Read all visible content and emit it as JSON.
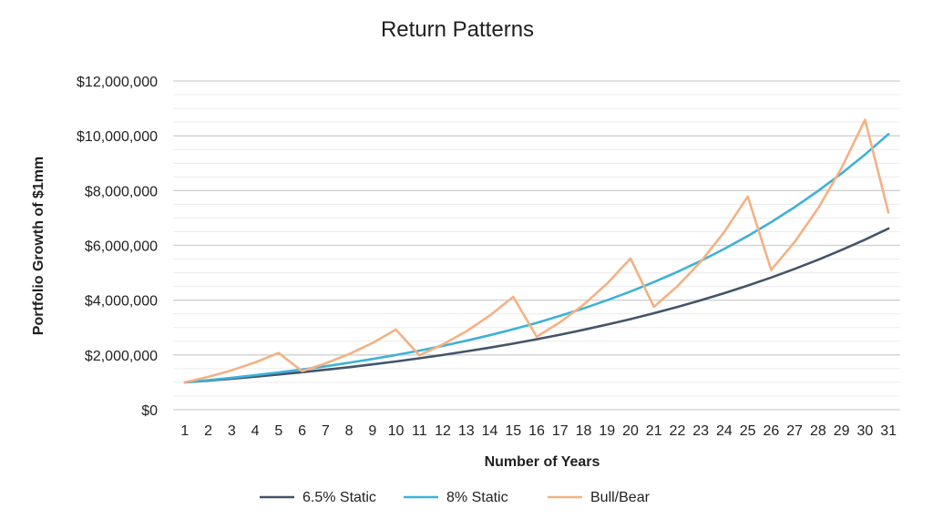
{
  "chart_data": {
    "type": "line",
    "title": "Return Patterns",
    "xlabel": "Number of Years",
    "ylabel": "Portfolio Growth of  $1mm",
    "ylim": [
      0,
      12000000
    ],
    "y_ticks": [
      0,
      2000000,
      4000000,
      6000000,
      8000000,
      10000000,
      12000000
    ],
    "y_tick_labels": [
      "$0",
      "$2,000,000",
      "$4,000,000",
      "$6,000,000",
      "$8,000,000",
      "$10,000,000",
      "$12,000,000"
    ],
    "grid": true,
    "legend_position": "bottom",
    "x": [
      1,
      2,
      3,
      4,
      5,
      6,
      7,
      8,
      9,
      10,
      11,
      12,
      13,
      14,
      15,
      16,
      17,
      18,
      19,
      20,
      21,
      22,
      23,
      24,
      25,
      26,
      27,
      28,
      29,
      30,
      31
    ],
    "series": [
      {
        "name": "6.5% Static",
        "color": "#44546a",
        "values": [
          1000000,
          1065000,
          1134225,
          1207950,
          1286466,
          1370086,
          1459142,
          1553987,
          1654996,
          1762570,
          1877137,
          1999151,
          2129096,
          2267487,
          2414874,
          2571840,
          2739009,
          2917045,
          3106653,
          3308586,
          3523645,
          3752682,
          3996606,
          4256386,
          4533051,
          4827699,
          5141500,
          5475697,
          5831618,
          6210672,
          6614365
        ]
      },
      {
        "name": "8% Static",
        "color": "#3eb1d8",
        "values": [
          1000000,
          1080000,
          1166400,
          1259712,
          1360489,
          1469328,
          1586874,
          1713824,
          1850930,
          1999005,
          2158925,
          2331639,
          2518170,
          2719624,
          2937194,
          3172169,
          3425943,
          3700018,
          3996019,
          4315701,
          4660957,
          5033834,
          5436540,
          5871464,
          6341181,
          6848475,
          7396353,
          7988061,
          8627106,
          9317275,
          10062657
        ]
      },
      {
        "name": "Bull/Bear",
        "color": "#f4b183",
        "values": [
          1000000,
          1200000,
          1440000,
          1728000,
          2073600,
          1410048,
          1692058,
          2030469,
          2436563,
          2923875,
          1988235,
          2385882,
          2863059,
          3435670,
          4122804,
          2663000,
          3195600,
          3834720,
          4601664,
          5521997,
          3754958,
          4505950,
          5407140,
          6488568,
          7786282,
          5105860,
          6127032,
          7352438,
          8822926,
          10587511,
          7199508
        ]
      }
    ]
  }
}
